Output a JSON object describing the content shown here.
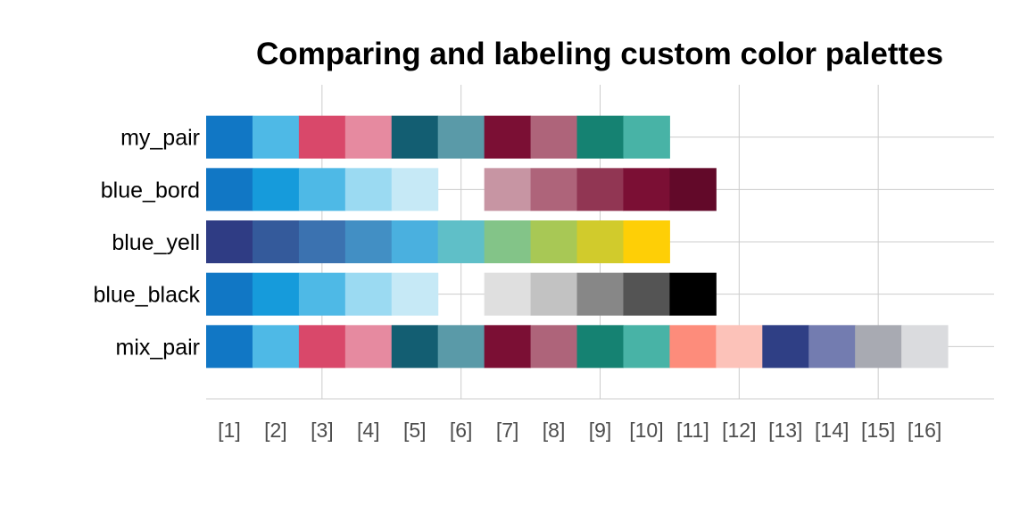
{
  "chart_data": {
    "type": "heatmap",
    "title": "Comparing and labeling custom color palettes",
    "xlabel": "",
    "ylabel": "",
    "x_ticks": [
      "[1]",
      "[2]",
      "[3]",
      "[4]",
      "[5]",
      "[6]",
      "[7]",
      "[8]",
      "[9]",
      "[10]",
      "[11]",
      "[12]",
      "[13]",
      "[14]",
      "[15]",
      "[16]"
    ],
    "xlim": [
      0.5,
      17.5
    ],
    "x_grid_major": [
      3,
      6,
      9,
      12,
      15
    ],
    "grid": true,
    "legend": "none",
    "palettes": [
      {
        "name": "my_pair",
        "colors": [
          {
            "x": 1,
            "color": "#1177c5"
          },
          {
            "x": 2,
            "color": "#4eb9e6"
          },
          {
            "x": 3,
            "color": "#d9486a"
          },
          {
            "x": 4,
            "color": "#e68aa0"
          },
          {
            "x": 5,
            "color": "#135e72"
          },
          {
            "x": 6,
            "color": "#5a9aa8"
          },
          {
            "x": 7,
            "color": "#7b0f34"
          },
          {
            "x": 8,
            "color": "#ae647a"
          },
          {
            "x": 9,
            "color": "#158272"
          },
          {
            "x": 10,
            "color": "#48b3a6"
          }
        ]
      },
      {
        "name": "blue_bord",
        "colors": [
          {
            "x": 1,
            "color": "#1177c5"
          },
          {
            "x": 2,
            "color": "#169bdb"
          },
          {
            "x": 3,
            "color": "#4eb9e6"
          },
          {
            "x": 4,
            "color": "#9bdaf2"
          },
          {
            "x": 5,
            "color": "#c6e9f6"
          },
          {
            "x": 7,
            "color": "#c795a3"
          },
          {
            "x": 8,
            "color": "#ae647a"
          },
          {
            "x": 9,
            "color": "#913653"
          },
          {
            "x": 10,
            "color": "#7b0f34"
          },
          {
            "x": 11,
            "color": "#620929"
          }
        ]
      },
      {
        "name": "blue_yell",
        "colors": [
          {
            "x": 1,
            "color": "#2f3c84"
          },
          {
            "x": 2,
            "color": "#345a9b"
          },
          {
            "x": 3,
            "color": "#3b72b0"
          },
          {
            "x": 4,
            "color": "#428fc4"
          },
          {
            "x": 5,
            "color": "#4ab0df"
          },
          {
            "x": 6,
            "color": "#5fbfc8"
          },
          {
            "x": 7,
            "color": "#83c488"
          },
          {
            "x": 8,
            "color": "#a8c855"
          },
          {
            "x": 9,
            "color": "#d1cb2c"
          },
          {
            "x": 10,
            "color": "#fecf06"
          }
        ]
      },
      {
        "name": "blue_black",
        "colors": [
          {
            "x": 1,
            "color": "#1177c5"
          },
          {
            "x": 2,
            "color": "#169bdb"
          },
          {
            "x": 3,
            "color": "#4eb9e6"
          },
          {
            "x": 4,
            "color": "#9bdaf2"
          },
          {
            "x": 5,
            "color": "#c6e9f6"
          },
          {
            "x": 7,
            "color": "#dfdfdf"
          },
          {
            "x": 8,
            "color": "#c2c2c2"
          },
          {
            "x": 9,
            "color": "#878787"
          },
          {
            "x": 10,
            "color": "#545454"
          },
          {
            "x": 11,
            "color": "#000000"
          }
        ]
      },
      {
        "name": "mix_pair",
        "colors": [
          {
            "x": 1,
            "color": "#1177c5"
          },
          {
            "x": 2,
            "color": "#4eb9e6"
          },
          {
            "x": 3,
            "color": "#d9486a"
          },
          {
            "x": 4,
            "color": "#e68aa0"
          },
          {
            "x": 5,
            "color": "#135e72"
          },
          {
            "x": 6,
            "color": "#5a9aa8"
          },
          {
            "x": 7,
            "color": "#7b0f34"
          },
          {
            "x": 8,
            "color": "#ae647a"
          },
          {
            "x": 9,
            "color": "#158272"
          },
          {
            "x": 10,
            "color": "#48b3a6"
          },
          {
            "x": 11,
            "color": "#fd8c7b"
          },
          {
            "x": 12,
            "color": "#fcc2b9"
          },
          {
            "x": 13,
            "color": "#2f3f85"
          },
          {
            "x": 14,
            "color": "#737cb0"
          },
          {
            "x": 15,
            "color": "#a8aab2"
          },
          {
            "x": 16,
            "color": "#dadbde"
          }
        ]
      }
    ]
  }
}
